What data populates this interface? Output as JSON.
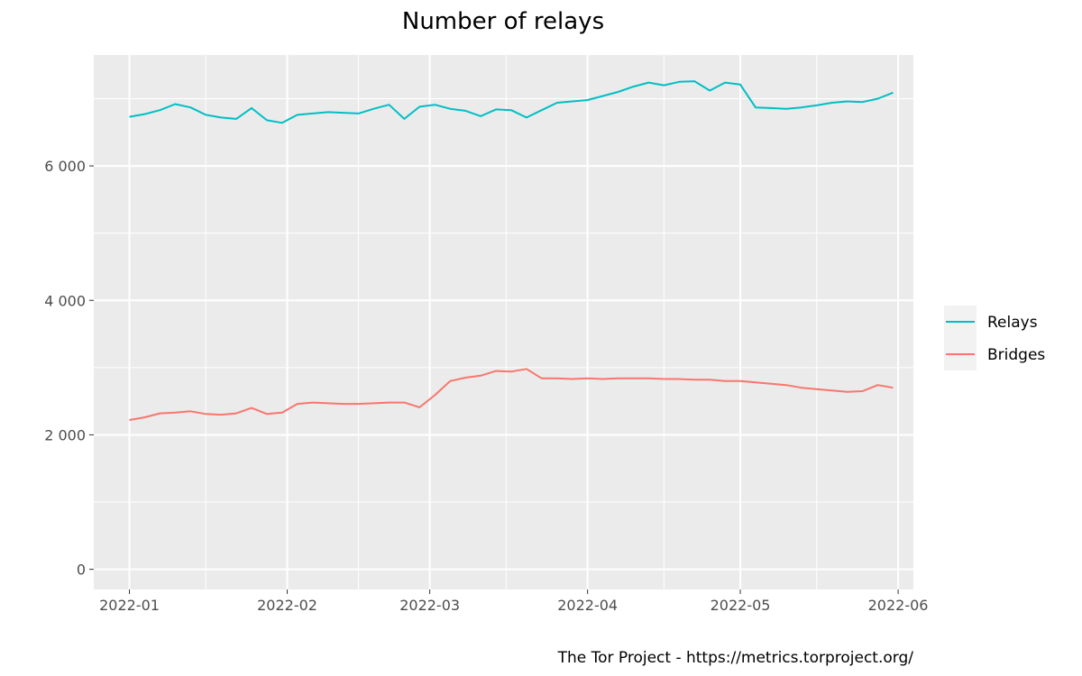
{
  "chart_data": {
    "type": "line",
    "title": "Number of relays",
    "xlabel": "",
    "ylabel": "",
    "caption": "The Tor Project - https://metrics.torproject.org/",
    "legend_position": "right",
    "grid": true,
    "x_range": [
      "2021-12-25",
      "2022-06-04"
    ],
    "ylim": [
      -300,
      7650
    ],
    "x_ticks": [
      {
        "date": "2022-01-01",
        "label": "2022-01"
      },
      {
        "date": "2022-02-01",
        "label": "2022-02"
      },
      {
        "date": "2022-03-01",
        "label": "2022-03"
      },
      {
        "date": "2022-04-01",
        "label": "2022-04"
      },
      {
        "date": "2022-05-01",
        "label": "2022-05"
      },
      {
        "date": "2022-06-01",
        "label": "2022-06"
      }
    ],
    "y_ticks": [
      {
        "value": 0,
        "label": "0"
      },
      {
        "value": 2000,
        "label": "2 000"
      },
      {
        "value": 4000,
        "label": "4 000"
      },
      {
        "value": 6000,
        "label": "6 000"
      }
    ],
    "series": [
      {
        "name": "Relays",
        "color": "#00bfc4",
        "points": [
          [
            "2022-01-01",
            6730
          ],
          [
            "2022-01-04",
            6770
          ],
          [
            "2022-01-07",
            6830
          ],
          [
            "2022-01-10",
            6920
          ],
          [
            "2022-01-13",
            6870
          ],
          [
            "2022-01-16",
            6760
          ],
          [
            "2022-01-19",
            6720
          ],
          [
            "2022-01-22",
            6700
          ],
          [
            "2022-01-25",
            6860
          ],
          [
            "2022-01-28",
            6680
          ],
          [
            "2022-01-31",
            6640
          ],
          [
            "2022-02-03",
            6760
          ],
          [
            "2022-02-06",
            6780
          ],
          [
            "2022-02-09",
            6800
          ],
          [
            "2022-02-12",
            6790
          ],
          [
            "2022-02-15",
            6780
          ],
          [
            "2022-02-18",
            6850
          ],
          [
            "2022-02-21",
            6910
          ],
          [
            "2022-02-24",
            6700
          ],
          [
            "2022-02-27",
            6880
          ],
          [
            "2022-03-02",
            6910
          ],
          [
            "2022-03-05",
            6850
          ],
          [
            "2022-03-08",
            6820
          ],
          [
            "2022-03-11",
            6740
          ],
          [
            "2022-03-14",
            6840
          ],
          [
            "2022-03-17",
            6830
          ],
          [
            "2022-03-20",
            6720
          ],
          [
            "2022-03-23",
            6830
          ],
          [
            "2022-03-26",
            6940
          ],
          [
            "2022-03-29",
            6960
          ],
          [
            "2022-04-01",
            6980
          ],
          [
            "2022-04-04",
            7040
          ],
          [
            "2022-04-07",
            7100
          ],
          [
            "2022-04-10",
            7180
          ],
          [
            "2022-04-13",
            7240
          ],
          [
            "2022-04-16",
            7200
          ],
          [
            "2022-04-19",
            7250
          ],
          [
            "2022-04-22",
            7260
          ],
          [
            "2022-04-25",
            7120
          ],
          [
            "2022-04-28",
            7240
          ],
          [
            "2022-05-01",
            7210
          ],
          [
            "2022-05-04",
            6870
          ],
          [
            "2022-05-07",
            6860
          ],
          [
            "2022-05-10",
            6850
          ],
          [
            "2022-05-13",
            6870
          ],
          [
            "2022-05-16",
            6900
          ],
          [
            "2022-05-19",
            6940
          ],
          [
            "2022-05-22",
            6960
          ],
          [
            "2022-05-25",
            6950
          ],
          [
            "2022-05-28",
            7000
          ],
          [
            "2022-05-31",
            7090
          ]
        ]
      },
      {
        "name": "Bridges",
        "color": "#f8766d",
        "points": [
          [
            "2022-01-01",
            2220
          ],
          [
            "2022-01-04",
            2260
          ],
          [
            "2022-01-07",
            2320
          ],
          [
            "2022-01-10",
            2330
          ],
          [
            "2022-01-13",
            2350
          ],
          [
            "2022-01-16",
            2310
          ],
          [
            "2022-01-19",
            2300
          ],
          [
            "2022-01-22",
            2320
          ],
          [
            "2022-01-25",
            2400
          ],
          [
            "2022-01-28",
            2310
          ],
          [
            "2022-01-31",
            2330
          ],
          [
            "2022-02-03",
            2460
          ],
          [
            "2022-02-06",
            2480
          ],
          [
            "2022-02-09",
            2470
          ],
          [
            "2022-02-12",
            2460
          ],
          [
            "2022-02-15",
            2460
          ],
          [
            "2022-02-18",
            2470
          ],
          [
            "2022-02-21",
            2480
          ],
          [
            "2022-02-24",
            2480
          ],
          [
            "2022-02-27",
            2410
          ],
          [
            "2022-03-02",
            2590
          ],
          [
            "2022-03-05",
            2800
          ],
          [
            "2022-03-08",
            2850
          ],
          [
            "2022-03-11",
            2880
          ],
          [
            "2022-03-14",
            2950
          ],
          [
            "2022-03-17",
            2940
          ],
          [
            "2022-03-20",
            2980
          ],
          [
            "2022-03-23",
            2840
          ],
          [
            "2022-03-26",
            2840
          ],
          [
            "2022-03-29",
            2830
          ],
          [
            "2022-04-01",
            2840
          ],
          [
            "2022-04-04",
            2830
          ],
          [
            "2022-04-07",
            2840
          ],
          [
            "2022-04-10",
            2840
          ],
          [
            "2022-04-13",
            2840
          ],
          [
            "2022-04-16",
            2830
          ],
          [
            "2022-04-19",
            2830
          ],
          [
            "2022-04-22",
            2820
          ],
          [
            "2022-04-25",
            2820
          ],
          [
            "2022-04-28",
            2800
          ],
          [
            "2022-05-01",
            2800
          ],
          [
            "2022-05-04",
            2780
          ],
          [
            "2022-05-07",
            2760
          ],
          [
            "2022-05-10",
            2740
          ],
          [
            "2022-05-13",
            2700
          ],
          [
            "2022-05-16",
            2680
          ],
          [
            "2022-05-19",
            2660
          ],
          [
            "2022-05-22",
            2640
          ],
          [
            "2022-05-25",
            2650
          ],
          [
            "2022-05-28",
            2740
          ],
          [
            "2022-05-31",
            2700
          ]
        ]
      }
    ]
  }
}
